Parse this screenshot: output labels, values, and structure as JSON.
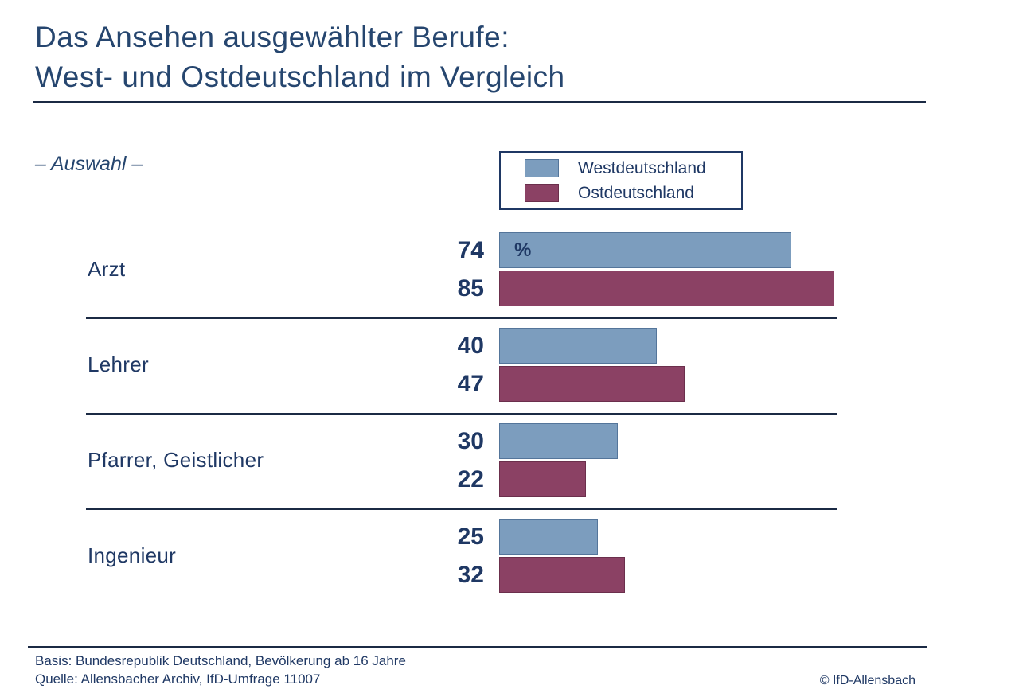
{
  "title": {
    "line1": "Das Ansehen ausgewählter Berufe:",
    "line2": "West- und Ostdeutschland im Vergleich"
  },
  "subtitle": "– Auswahl –",
  "legend": {
    "items": [
      {
        "label": "Westdeutschland",
        "color": "#7C9DBE",
        "border": "#54759A"
      },
      {
        "label": "Ostdeutschland",
        "color": "#8B4164",
        "border": "#6B2F4C"
      }
    ]
  },
  "unit_label": "%",
  "chart_data": {
    "type": "bar",
    "orientation": "horizontal",
    "title": "Das Ansehen ausgewählter Berufe: West- und Ostdeutschland im Vergleich",
    "categories": [
      "Arzt",
      "Lehrer",
      "Pfarrer, Geistlicher",
      "Ingenieur"
    ],
    "series": [
      {
        "name": "Westdeutschland",
        "color": "#7C9DBE",
        "border": "#54759A",
        "values": [
          74,
          40,
          30,
          25
        ]
      },
      {
        "name": "Ostdeutschland",
        "color": "#8B4164",
        "border": "#6B2F4C",
        "values": [
          85,
          47,
          22,
          32
        ]
      }
    ],
    "value_unit": "%",
    "xlim": [
      0,
      85
    ],
    "data_labels": "left-of-bar",
    "legend_position": "top-center",
    "grid": false
  },
  "footer": {
    "basis": "Basis: Bundesrepublik Deutschland, Bevölkerung ab 16 Jahre",
    "quelle": "Quelle: Allensbacher Archiv, IfD-Umfrage 11007",
    "copyright": "© IfD-Allensbach"
  },
  "colors": {
    "text_navy": "#1F3864",
    "title_blue": "#26466F",
    "rule": "#1B2A44",
    "background": "#ffffff"
  }
}
